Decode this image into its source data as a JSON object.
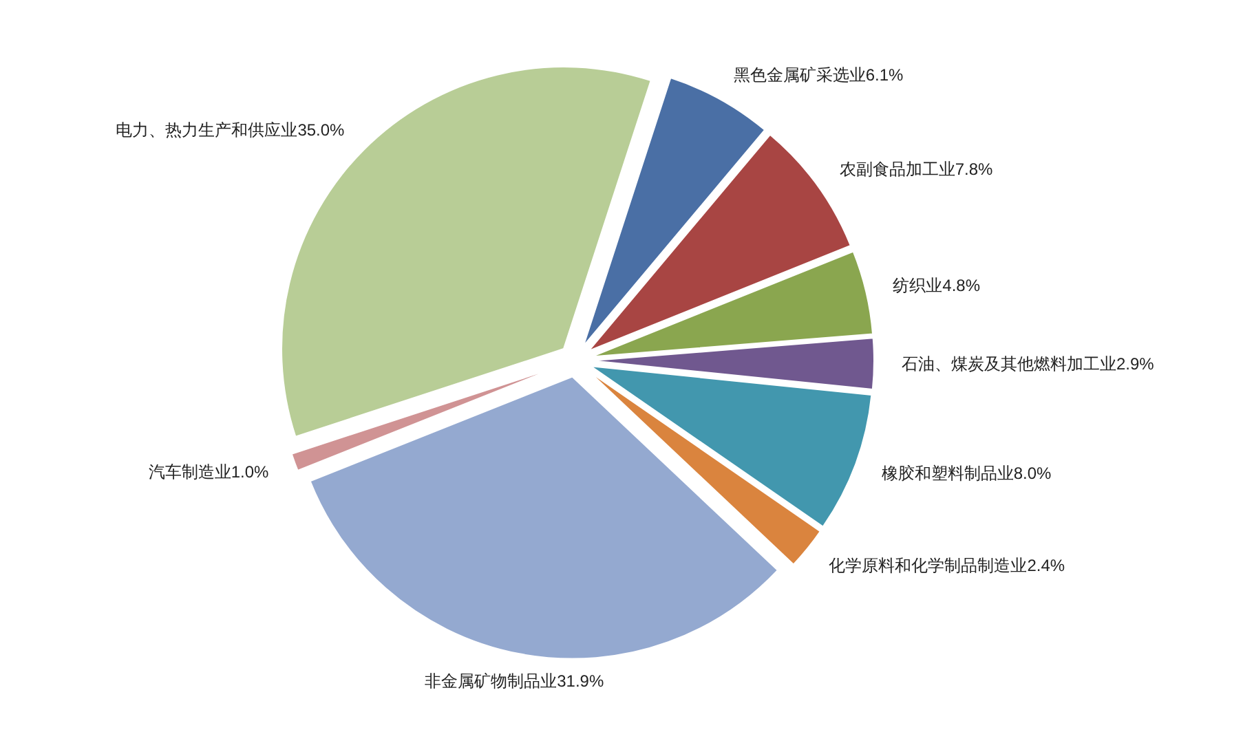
{
  "chart_data": {
    "type": "pie",
    "categories": [
      "黑色金属矿采选业",
      "农副食品加工业",
      "纺织业",
      "石油、煤炭及其他燃料加工业",
      "橡胶和塑料制品业",
      "化学原料和化学制品制造业",
      "非金属矿物制品业",
      "汽车制造业",
      "电力、热力生产和供应业"
    ],
    "values": [
      6.1,
      7.8,
      4.8,
      2.9,
      8.0,
      2.4,
      31.9,
      1.0,
      35.0
    ],
    "value_labels": [
      "6.1%",
      "7.8%",
      "4.8%",
      "2.9%",
      "8.0%",
      "2.4%",
      "31.9%",
      "1.0%",
      "35.0%"
    ],
    "colors": [
      "#4a6fa5",
      "#a84543",
      "#8aa64f",
      "#70588f",
      "#4297ae",
      "#da843e",
      "#94a9d0",
      "#d09394",
      "#b8cd96"
    ]
  }
}
